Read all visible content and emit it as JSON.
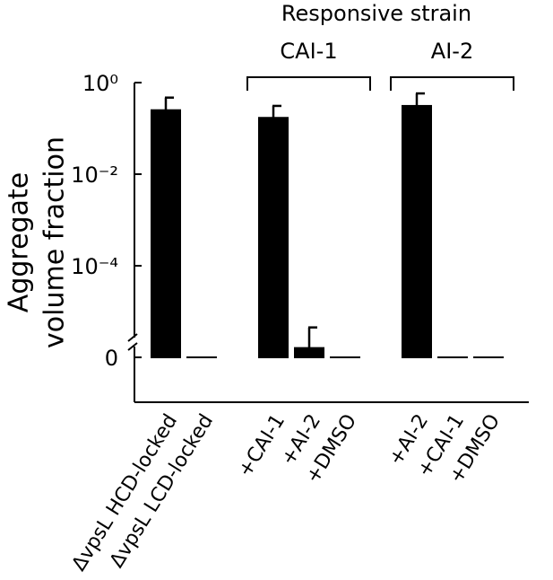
{
  "chart_data": {
    "type": "bar",
    "title": "Responsive strain",
    "y_label": [
      "Aggregate",
      "volume fraction"
    ],
    "categories": [
      "ΔvpsL HCD-locked",
      "ΔvpsL LCD-locked",
      "+CAI-1",
      "+AI-2",
      "+DMSO",
      "+AI-2",
      "+CAI-1",
      "+DMSO"
    ],
    "values": [
      0.25,
      0,
      0.17,
      1.3e-06,
      0,
      0.31,
      0,
      0
    ],
    "errors": [
      0.22,
      0,
      0.14,
      3.2e-06,
      0,
      0.27,
      0,
      0
    ],
    "color": "#000000",
    "groups": [
      {
        "name": "CAI-1",
        "members": [
          2,
          3,
          4
        ]
      },
      {
        "name": "AI-2",
        "members": [
          5,
          6,
          7
        ]
      }
    ],
    "yscale": "log",
    "axis_break": true,
    "ylim": [
      0,
      1
    ],
    "yticks": [
      {
        "value": 1,
        "label": "10⁰"
      },
      {
        "value": 0.01,
        "label": "10⁻²"
      },
      {
        "value": 0.0001,
        "label": "10⁻⁴"
      },
      0
    ]
  }
}
